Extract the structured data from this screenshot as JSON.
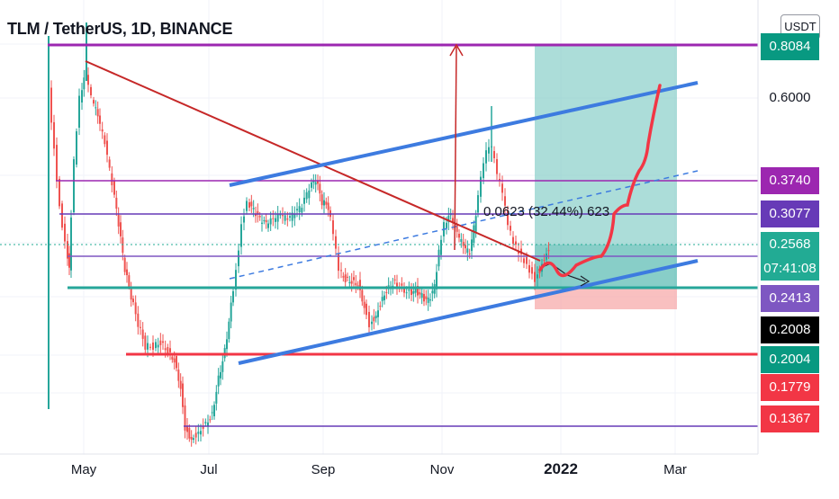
{
  "header": {
    "symbol_title": "TLM / TetherUS, 1D, BINANCE",
    "currency": "USDT"
  },
  "chart_data": {
    "type": "candlestick",
    "title": "TLM / TetherUS, 1D, BINANCE",
    "exchange": "BINANCE",
    "interval": "1D",
    "quote_currency": "USDT",
    "x_tick_labels": [
      "May",
      "Jul",
      "Sep",
      "Nov",
      "2022",
      "Mar"
    ],
    "y_tick_labels": [
      "0.6000"
    ],
    "last_price": "0.2568",
    "countdown": "07:41:08",
    "price_tags": [
      {
        "value": "0.8084",
        "color": "#089981"
      },
      {
        "value": "0.3740",
        "color": "#9c27b0"
      },
      {
        "value": "0.3077",
        "color": "#673ab7"
      },
      {
        "value": "0.2568",
        "color": "#22ab94"
      },
      {
        "value": "0.2413",
        "color": "#7e57c2"
      },
      {
        "value": "0.2008",
        "color": "#000000"
      },
      {
        "value": "0.2004",
        "color": "#089981"
      },
      {
        "value": "0.1779",
        "color": "#f23645"
      },
      {
        "value": "0.1367",
        "color": "#f23645"
      }
    ],
    "position_annotation": "0.0623 (32.44%) 623",
    "colors": {
      "up": "#26a69a",
      "down": "#ef5350",
      "channel": "#3d7be0",
      "resistance": "#9c27b0",
      "trendline": "#c62828",
      "support": "#26a69a",
      "target": "#80cbc4",
      "stop": "#f6a5a5",
      "projection": "#f23645"
    }
  }
}
